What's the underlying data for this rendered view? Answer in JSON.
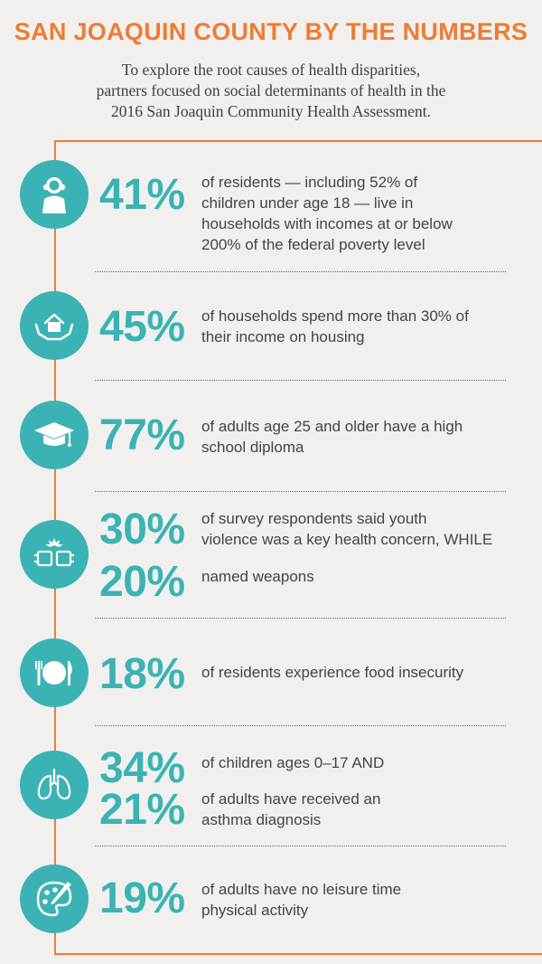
{
  "header": {
    "title": "SAN JOAQUIN COUNTY BY THE NUMBERS",
    "subtitle_line1": "To explore the root causes of health disparities,",
    "subtitle_line2": "partners focused on social determinants of health in the",
    "subtitle_line3": "2016 San Joaquin Community Health Assessment."
  },
  "stats": [
    {
      "icon": "child-icon",
      "pct": "41%",
      "line1": "of residents — including 52% of",
      "line2": "children under age 18 — live in",
      "line3": "households with incomes at or below",
      "line4": "200% of the federal poverty level"
    },
    {
      "icon": "house-in-hands-icon",
      "pct": "45%",
      "line1": "of households spend more than 30% of",
      "line2": "their income on housing"
    },
    {
      "icon": "graduation-cap-icon",
      "pct": "77%",
      "line1": "of adults age 25 and older have a high",
      "line2": "school diploma"
    },
    {
      "icon": "fist-bump-icon",
      "pct": "30%",
      "pct2": "20%",
      "line1": "of survey respondents said youth",
      "line2": "violence was a key health concern, WHILE",
      "line3": "named weapons"
    },
    {
      "icon": "plate-fork-knife-icon",
      "pct": "18%",
      "line1": "of residents experience food insecurity"
    },
    {
      "icon": "lungs-icon",
      "pct": "34%",
      "pct2": "21%",
      "line1": "of children ages 0–17 AND",
      "line2": "of adults have received an",
      "line3": "asthma diagnosis"
    },
    {
      "icon": "palette-icon",
      "pct": "19%",
      "line1": "of adults have no leisure time",
      "line2": "physical activity"
    }
  ],
  "colors": {
    "accent_orange": "#ef7c33",
    "teal": "#3bb3b4",
    "background": "#f1f0ef"
  }
}
